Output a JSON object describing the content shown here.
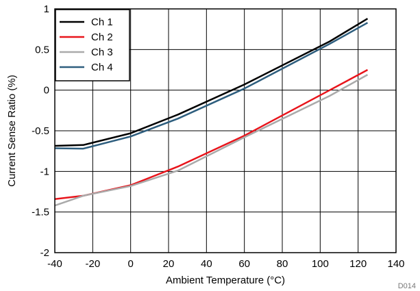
{
  "chart_data": {
    "type": "line",
    "xlabel": "Ambient Temperature (°C)",
    "ylabel": "Current Sense Ratio (%)",
    "xlim": [
      -40,
      140
    ],
    "ylim": [
      -2,
      1
    ],
    "xticks": [
      -40,
      -20,
      0,
      20,
      40,
      60,
      80,
      100,
      120,
      140
    ],
    "yticks": [
      1,
      0.5,
      0,
      -0.5,
      -1,
      -1.5,
      -2
    ],
    "grid": true,
    "legend_position": "top-left",
    "footnote": "D014",
    "series": [
      {
        "name": "Ch 1",
        "color": "#000000",
        "x": [
          -40,
          -25,
          0,
          25,
          60,
          105,
          125
        ],
        "y": [
          -0.685,
          -0.675,
          -0.53,
          -0.3,
          0.07,
          0.6,
          0.88
        ]
      },
      {
        "name": "Ch 2",
        "color": "#e8141b",
        "x": [
          -40,
          -25,
          0,
          25,
          60,
          105,
          125
        ],
        "y": [
          -1.34,
          -1.3,
          -1.17,
          -0.94,
          -0.56,
          0.0,
          0.25
        ]
      },
      {
        "name": "Ch 3",
        "color": "#aaaaaa",
        "x": [
          -40,
          -25,
          0,
          25,
          60,
          105,
          125
        ],
        "y": [
          -1.42,
          -1.3,
          -1.18,
          -0.99,
          -0.58,
          -0.07,
          0.19
        ]
      },
      {
        "name": "Ch 4",
        "color": "#2e5e7e",
        "x": [
          -40,
          -25,
          0,
          25,
          60,
          105,
          125
        ],
        "y": [
          -0.715,
          -0.72,
          -0.57,
          -0.35,
          0.02,
          0.57,
          0.83
        ]
      }
    ]
  }
}
